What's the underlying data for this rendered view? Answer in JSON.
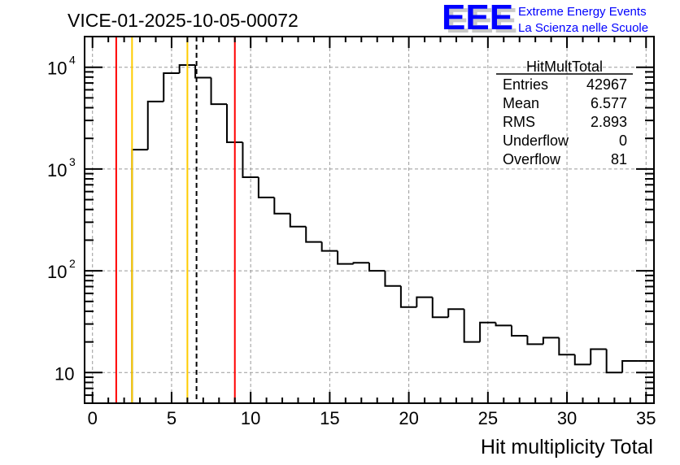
{
  "logo": {
    "text": "EEE",
    "line1": "Extreme Energy Events",
    "line2": "La Scienza nelle Scuole",
    "color": "#0000ff"
  },
  "stats": {
    "title": "HitMultTotal",
    "rows": [
      {
        "label": "Entries",
        "value": "42967"
      },
      {
        "label": "Mean",
        "value": "6.577"
      },
      {
        "label": "RMS",
        "value": "2.893"
      },
      {
        "label": "Underflow",
        "value": "0"
      },
      {
        "label": "Overflow",
        "value": "81"
      }
    ]
  },
  "chart_data": {
    "type": "bar",
    "title": "VICE-01-2025-10-05-00072",
    "xlabel": "Hit multiplicity Total",
    "ylabel": "",
    "yscale": "log",
    "xlim": [
      -0.5,
      35.5
    ],
    "ylim": [
      5,
      20000
    ],
    "grid": true,
    "x_ticks": [
      0,
      5,
      10,
      15,
      20,
      25,
      30,
      35
    ],
    "x_tick_labels": [
      "0",
      "5",
      "10",
      "15",
      "20",
      "25",
      "30",
      "35"
    ],
    "y_ticks": [
      10,
      100,
      1000,
      10000
    ],
    "y_tick_labels": [
      {
        "base": "10",
        "exp": ""
      },
      {
        "base": "10",
        "exp": "2"
      },
      {
        "base": "10",
        "exp": "3"
      },
      {
        "base": "10",
        "exp": "4"
      }
    ],
    "bin_width": 1,
    "bin_centers": [
      3,
      4,
      5,
      6,
      7,
      8,
      9,
      10,
      11,
      12,
      13,
      14,
      15,
      16,
      17,
      18,
      19,
      20,
      21,
      22,
      23,
      24,
      25,
      26,
      27,
      28,
      29,
      30,
      31,
      32,
      33,
      34,
      35
    ],
    "values": [
      1550,
      4600,
      8750,
      10500,
      7900,
      4340,
      1830,
      830,
      525,
      365,
      272,
      192,
      157,
      117,
      120,
      100,
      71,
      44,
      55,
      35,
      42,
      20,
      31,
      29,
      23,
      19,
      22,
      15,
      12,
      17,
      10,
      13,
      13
    ],
    "vertical_lines": [
      {
        "x": 1.5,
        "color": "#ff0000",
        "style": "solid"
      },
      {
        "x": 2.5,
        "color": "#ffcc00",
        "style": "solid"
      },
      {
        "x": 6.0,
        "color": "#ffcc00",
        "style": "solid"
      },
      {
        "x": 6.577,
        "color": "#000000",
        "style": "dashed"
      },
      {
        "x": 9.0,
        "color": "#ff0000",
        "style": "solid"
      }
    ],
    "legend": "top-right"
  }
}
